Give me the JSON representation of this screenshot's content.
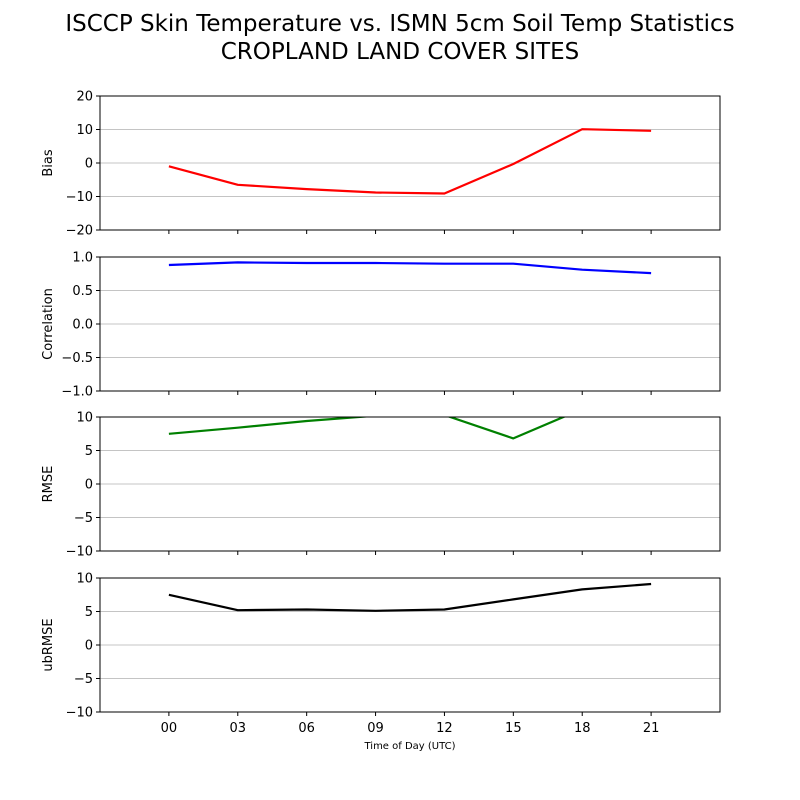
{
  "title_line1": "ISCCP Skin Temperature vs. ISMN 5cm Soil Temp Statistics",
  "title_line2": "CROPLAND LAND COVER SITES",
  "chart_data": {
    "type": "line",
    "x": [
      "00",
      "03",
      "06",
      "09",
      "12",
      "15",
      "18",
      "21"
    ],
    "xlabel": "Time of Day (UTC)",
    "xlim": [
      -1,
      8
    ],
    "grid": "horizontal",
    "panels": [
      {
        "ylabel": "Bias",
        "ylim": [
          -20,
          20
        ],
        "yticks": [
          -20,
          -10,
          0,
          10,
          20
        ],
        "color": "#ff0000",
        "values": [
          -1,
          -6.5,
          -7.8,
          -8.8,
          -9.1,
          -0.3,
          10.1,
          9.6
        ]
      },
      {
        "ylabel": "Correlation",
        "ylim": [
          -1,
          1
        ],
        "yticks": [
          -1.0,
          -0.5,
          0.0,
          0.5,
          1.0
        ],
        "color": "#0000ff",
        "values": [
          0.88,
          0.92,
          0.91,
          0.91,
          0.9,
          0.9,
          0.81,
          0.76
        ]
      },
      {
        "ylabel": "RMSE",
        "ylim": [
          -10,
          10
        ],
        "yticks": [
          -10,
          -5,
          0,
          5,
          10
        ],
        "color": "#008000",
        "values": [
          7.5,
          8.4,
          9.4,
          10.2,
          10.3,
          6.8,
          11.2,
          11.0
        ]
      },
      {
        "ylabel": "ubRMSE",
        "ylim": [
          -10,
          10
        ],
        "yticks": [
          -10,
          -5,
          0,
          5,
          10
        ],
        "color": "#000000",
        "values": [
          7.5,
          5.2,
          5.3,
          5.1,
          5.3,
          6.8,
          8.3,
          9.1
        ]
      }
    ]
  }
}
